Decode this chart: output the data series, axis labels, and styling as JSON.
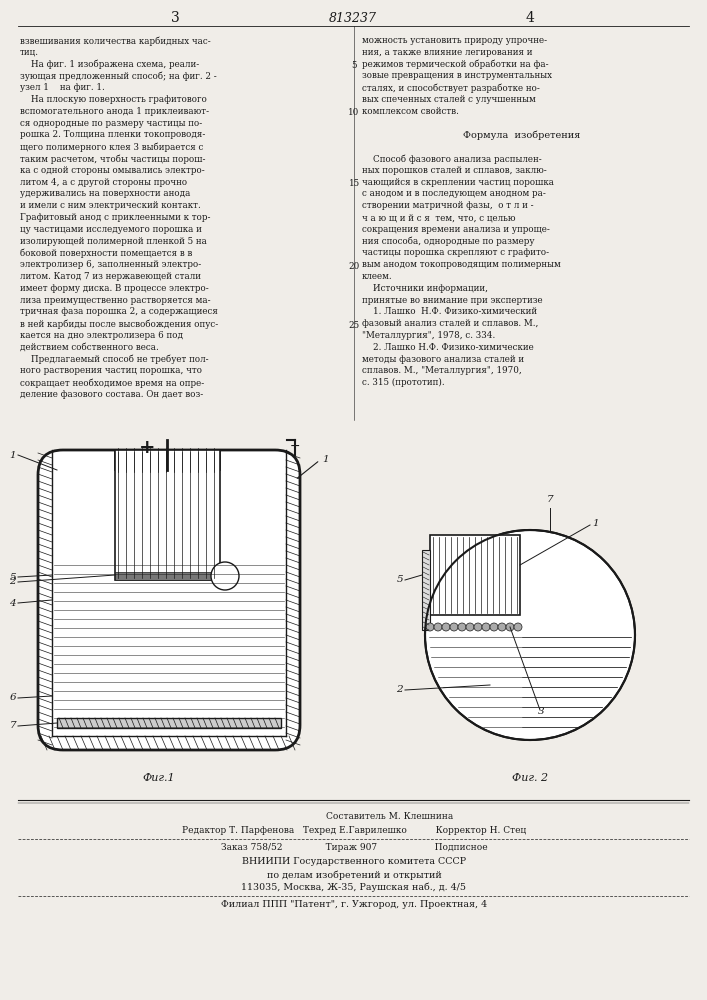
{
  "bg_color": "#f0ede8",
  "text_color": "#1a1a1a",
  "page_width": 7.07,
  "page_height": 10.0,
  "header": {
    "left_num": "3",
    "center_num": "813237",
    "right_num": "4"
  },
  "left_col_lines": [
    "взвешивания количества карбидных час-",
    "тиц.",
    "    На фиг. 1 изображена схема, реали-",
    "зующая предложенный способ; на фиг. 2 -",
    "узел 1    на фиг. 1.",
    "    На плоскую поверхность графитового",
    "вспомогательного анода 1 приклеивают-",
    "ся однородные по размеру частицы по-",
    "рошка 2. Толщина пленки токопроводя-",
    "щего полимерного клея 3 выбирается с",
    "таким расчетом, чтобы частицы порош-",
    "ка с одной стороны омывались электро-",
    "литом 4, а с другой стороны прочно",
    "удерживались на поверхности анода",
    "и имели с ним электрический контакт.",
    "Графитовый анод с приклеенными к тор-",
    "цу частицами исследуемого порошка и",
    "изолирующей полимерной пленкой 5 на",
    "боковой поверхности помещается в в",
    "электролизер 6, заполненный электро-",
    "литом. Катод 7 из нержавеющей стали",
    "имеет форму диска. В процессе электро-",
    "лиза преимущественно растворяется ма-",
    "тричная фаза порошка 2, а содержащиеся",
    "в ней карбиды после высвобождения опус-",
    "кается на дно электролизера 6 под",
    "действием собственного веса.",
    "    Предлагаемый способ не требует пол-",
    "ного растворения частиц порошка, что",
    "сокращает необходимое время на опре-",
    "деление фазового состава. Он дает воз-"
  ],
  "right_col_lines": [
    "можность установить природу упрочне-",
    "ния, а также влияние легирования и",
    "режимов термической обработки на фа-",
    "зовые превращения в инструментальных",
    "сталях, и способствует разработке но-",
    "вых спеченных сталей с улучшенным",
    "комплексом свойств.",
    "",
    "Формула  изобретения",
    "",
    "    Способ фазового анализа распылен-",
    "ных порошков сталей и сплавов, заклю-",
    "чающийся в скреплении частиц порошка",
    "с анодом и в последующем анодном ра-",
    "створении матричной фазы,  о т л и -",
    "ч а ю щ и й с я  тем, что, с целью",
    "сокращения времени анализа и упроще-",
    "ния способа, однородные по размеру",
    "частицы порошка скрепляют с графито-",
    "вым анодом токопроводящим полимерным",
    "клеем.",
    "    Источники информации,",
    "принятые во внимание при экспертизе",
    "    1. Лашко  Н.Ф. Физико-химический",
    "фазовый анализ сталей и сплавов. М.,",
    "\"Металлургия\", 1978, с. 334.",
    "    2. Лашко Н.Ф. Физико-химические",
    "методы фазового анализа сталей и",
    "сплавов. М., \"Металлургия\", 1970,",
    "с. 315 (прототип)."
  ],
  "fig1_caption": "Фиг.1",
  "fig2_caption": "Фиг. 2",
  "footer_lines": [
    "Составитель М. Клешнина",
    "Редактор Т. Парфенова   Техред Е.Гаврилешко          Корректор Н. Стец",
    "Заказ 758/52               Тираж 907                    Подписное",
    "ВНИИПИ Государственного комитета СССР",
    "по делам изобретений и открытий",
    "113035, Москва, Ж-35, Раушская наб., д. 4/5",
    "Филиал ППП \"Патент\", г. Ужгород, ул. Проектная, 4"
  ]
}
